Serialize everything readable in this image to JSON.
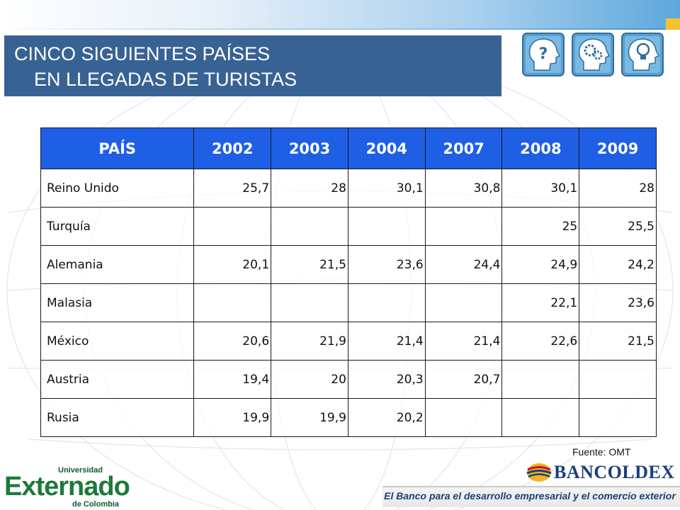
{
  "title": {
    "line1": "CINCO SIGUIENTES PAÍSES",
    "line2": "EN LLEGADAS DE TURISTAS"
  },
  "icons": [
    "question-head-icon",
    "gears-head-icon",
    "lightbulb-head-icon"
  ],
  "table": {
    "headers": [
      "PAÍS",
      "2002",
      "2003",
      "2004",
      "2007",
      "2008",
      "2009"
    ],
    "rows": [
      [
        "Reino Unido",
        "25,7",
        "28",
        "30,1",
        "30,8",
        "30,1",
        "28"
      ],
      [
        "Turquía",
        "",
        "",
        "",
        "",
        "25",
        "25,5"
      ],
      [
        "Alemania",
        "20,1",
        "21,5",
        "23,6",
        "24,4",
        "24,9",
        "24,2"
      ],
      [
        "Malasia",
        "",
        "",
        "",
        "",
        "22,1",
        "23,6"
      ],
      [
        "México",
        "20,6",
        "21,9",
        "21,4",
        "21,4",
        "22,6",
        "21,5"
      ],
      [
        "Austria",
        "19,4",
        "20",
        "20,3",
        "20,7",
        "",
        ""
      ],
      [
        "Rusia",
        "19,9",
        "19,9",
        "20,2",
        "",
        "",
        ""
      ]
    ]
  },
  "source": "Fuente: OMT",
  "logos": {
    "externado": {
      "top": "Universidad",
      "name": "Externado",
      "bottom": "de Colombia"
    },
    "bancoldex": {
      "name": "BANCOLDEX",
      "tagline": "El Banco para el desarrollo empresarial y el comercio exterior"
    }
  },
  "colors": {
    "title_bg": "#386293",
    "header_bg": "#1f5fe6",
    "externado_green": "#1d7a3a",
    "bancoldex_blue": "#1c3f7a"
  }
}
